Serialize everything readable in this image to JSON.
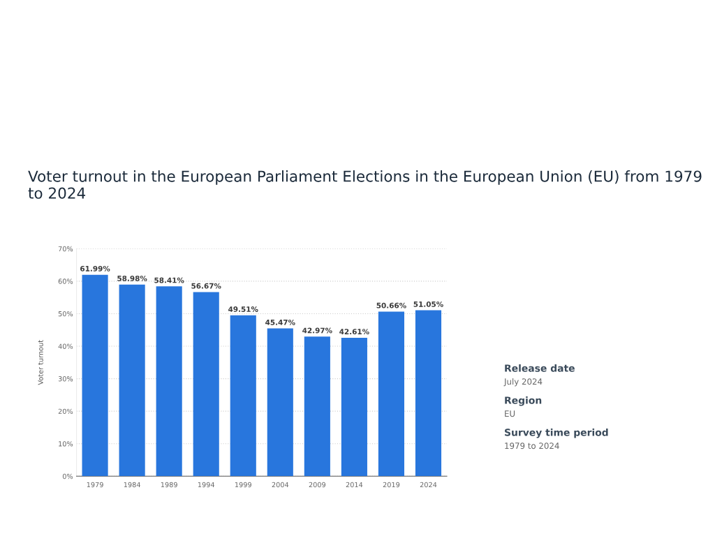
{
  "chart_data": {
    "type": "bar",
    "title": "Voter turnout in the European Parliament Elections in the European Union (EU) from 1979 to 2024",
    "ylabel": "Voter turnout",
    "categories": [
      "1979",
      "1984",
      "1989",
      "1994",
      "1999",
      "2004",
      "2009",
      "2014",
      "2019",
      "2024"
    ],
    "values": [
      61.99,
      58.98,
      58.41,
      56.67,
      49.51,
      45.47,
      42.97,
      42.61,
      50.66,
      51.05
    ],
    "value_labels": [
      "61.99%",
      "58.98%",
      "58.41%",
      "56.67%",
      "49.51%",
      "45.47%",
      "42.97%",
      "42.61%",
      "50.66%",
      "51.05%"
    ],
    "color": "#2876dd",
    "ylim": [
      0,
      70
    ],
    "yticks": [
      {
        "value": 0,
        "label": "0%"
      },
      {
        "value": 10,
        "label": "10%"
      },
      {
        "value": 20,
        "label": "20%"
      },
      {
        "value": 30,
        "label": "30%"
      },
      {
        "value": 40,
        "label": "40%"
      },
      {
        "value": 50,
        "label": "50%"
      },
      {
        "value": 60,
        "label": "60%"
      },
      {
        "value": 70,
        "label": "70%"
      }
    ],
    "grid": "y",
    "annotations": [
      "Release date",
      "July 2024",
      "Region",
      "EU",
      "Survey time period",
      "1979 to 2024"
    ]
  }
}
